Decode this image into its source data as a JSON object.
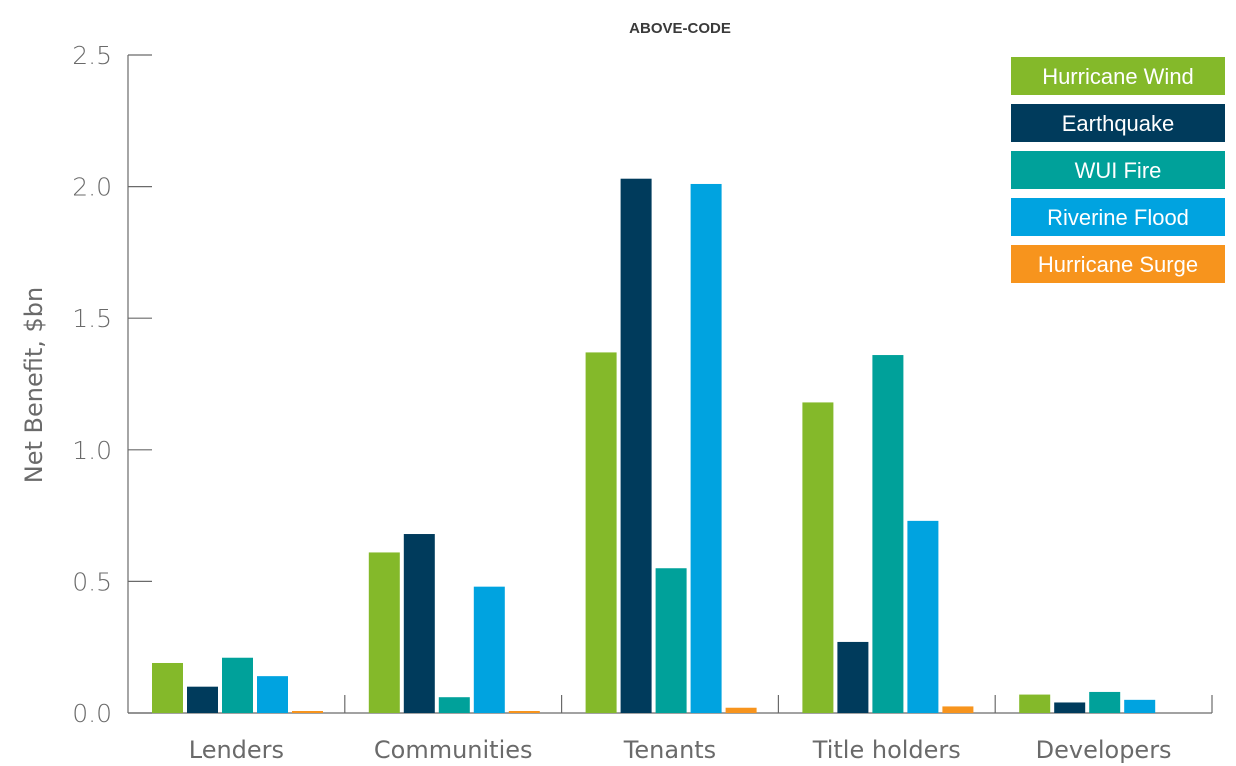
{
  "chart_data": {
    "type": "bar",
    "title": "ABOVE-CODE",
    "xlabel": "",
    "ylabel": "Net Benefit, $bn",
    "ylim": [
      0,
      2.5
    ],
    "yticks": [
      0.0,
      0.5,
      1.0,
      1.5,
      2.0,
      2.5
    ],
    "ytick_labels": [
      "0.0",
      "0.5",
      "1.0",
      "1.5",
      "2.0",
      "2.5"
    ],
    "categories": [
      "Lenders",
      "Communities",
      "Tenants",
      "Title holders",
      "Developers"
    ],
    "series": [
      {
        "name": "Hurricane Wind",
        "color": "#84b92a",
        "values": [
          0.19,
          0.61,
          1.37,
          1.18,
          0.07
        ]
      },
      {
        "name": "Earthquake",
        "color": "#003b5c",
        "values": [
          0.1,
          0.68,
          2.03,
          0.27,
          0.04
        ]
      },
      {
        "name": "WUI Fire",
        "color": "#00a19a",
        "values": [
          0.21,
          0.06,
          0.55,
          1.36,
          0.08
        ]
      },
      {
        "name": "Riverine Flood",
        "color": "#00a3e0",
        "values": [
          0.14,
          0.48,
          2.01,
          0.73,
          0.05
        ]
      },
      {
        "name": "Hurricane Surge",
        "color": "#f7941d",
        "values": [
          0.005,
          0.005,
          0.02,
          0.025,
          0.0
        ]
      }
    ],
    "grid": false,
    "legend_position": "top-right"
  }
}
